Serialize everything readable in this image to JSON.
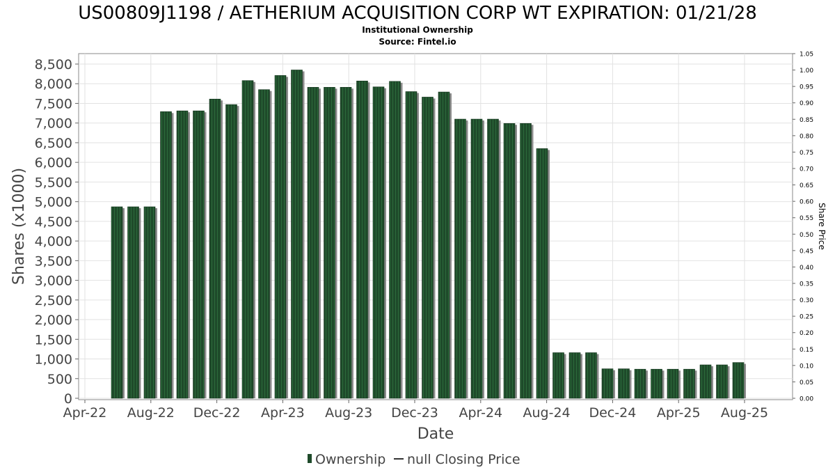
{
  "chart_data": {
    "type": "bar",
    "title": "US00809J1198 / AETHERIUM ACQUISITION CORP WT EXPIRATION: 01/21/28",
    "subtitle_line1": "Institutional Ownership",
    "subtitle_line2": "Source: Fintel.io",
    "xlabel": "Date",
    "ylabel": "Shares (x1000)",
    "y2label": "Share Price",
    "ylim": [
      0,
      8800
    ],
    "y2lim": [
      0,
      1.05
    ],
    "yticks": [
      0,
      500,
      1000,
      1500,
      2000,
      2500,
      3000,
      3500,
      4000,
      4500,
      5000,
      5500,
      6000,
      6500,
      7000,
      7500,
      8000,
      8500
    ],
    "ytick_labels": [
      "0",
      "500",
      "1,000",
      "1,500",
      "2,000",
      "2,500",
      "3,000",
      "3,500",
      "4,000",
      "4,500",
      "5,000",
      "5,500",
      "6,000",
      "6,500",
      "7,000",
      "7,500",
      "8,000",
      "8,500"
    ],
    "y2ticks": [
      0,
      0.05,
      0.1,
      0.15,
      0.2,
      0.25,
      0.3,
      0.35,
      0.4,
      0.45,
      0.5,
      0.55,
      0.6,
      0.65,
      0.7,
      0.75,
      0.8,
      0.85,
      0.9,
      0.95,
      1.0,
      1.05
    ],
    "y2tick_labels": [
      "0.00",
      "0.05",
      "0.10",
      "0.15",
      "0.20",
      "0.25",
      "0.30",
      "0.35",
      "0.40",
      "0.45",
      "0.50",
      "0.55",
      "0.60",
      "0.65",
      "0.70",
      "0.75",
      "0.80",
      "0.85",
      "0.90",
      "0.95",
      "1.00",
      "1.05"
    ],
    "x_ticks": [
      "Apr-22",
      "Aug-22",
      "Dec-22",
      "Apr-23",
      "Aug-23",
      "Dec-23",
      "Apr-24",
      "Aug-24",
      "Dec-24",
      "Apr-25",
      "Aug-25"
    ],
    "grid": true,
    "legend_position": "bottom-center",
    "series": [
      {
        "name": "Ownership",
        "color": "#1e4a2a",
        "values": [
          4870,
          4870,
          4870,
          7290,
          7310,
          7310,
          7610,
          7470,
          8080,
          7850,
          8210,
          8350,
          7910,
          7910,
          7910,
          8070,
          7920,
          8060,
          7800,
          7660,
          7790,
          7100,
          7100,
          7100,
          6990,
          6990,
          6350,
          1160,
          1160,
          1160,
          750,
          750,
          740,
          740,
          740,
          740,
          850,
          850,
          910
        ]
      }
    ],
    "legend": [
      {
        "label": "Ownership",
        "symbol": "bar",
        "color": "#1e4a2a"
      },
      {
        "label": "null Closing Price",
        "symbol": "line",
        "color": "#333333"
      }
    ]
  }
}
